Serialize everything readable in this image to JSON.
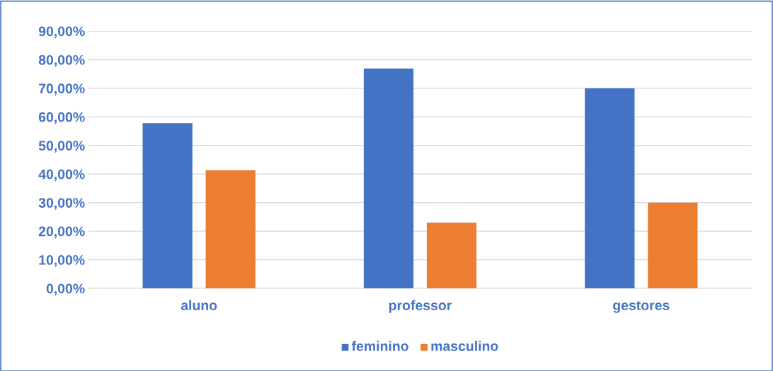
{
  "chart_data": {
    "type": "bar",
    "categories": [
      "aluno",
      "professor",
      "gestores"
    ],
    "series": [
      {
        "name": "feminino",
        "color": "#4472c4",
        "values": [
          57.8,
          76.9,
          70.0
        ]
      },
      {
        "name": "masculino",
        "color": "#ed7d31",
        "values": [
          41.3,
          23.0,
          30.0
        ]
      }
    ],
    "ylim": [
      0,
      90
    ],
    "yticks": [
      {
        "value": 0,
        "label": "0,00%"
      },
      {
        "value": 10,
        "label": "10,00%"
      },
      {
        "value": 20,
        "label": "20,00%"
      },
      {
        "value": 30,
        "label": "30,00%"
      },
      {
        "value": 40,
        "label": "40,00%"
      },
      {
        "value": 50,
        "label": "50,00%"
      },
      {
        "value": 60,
        "label": "60,00%"
      },
      {
        "value": 70,
        "label": "70,00%"
      },
      {
        "value": 80,
        "label": "80,00%"
      },
      {
        "value": 90,
        "label": "90,00%"
      }
    ],
    "grid": "y",
    "legend": "bottom"
  }
}
